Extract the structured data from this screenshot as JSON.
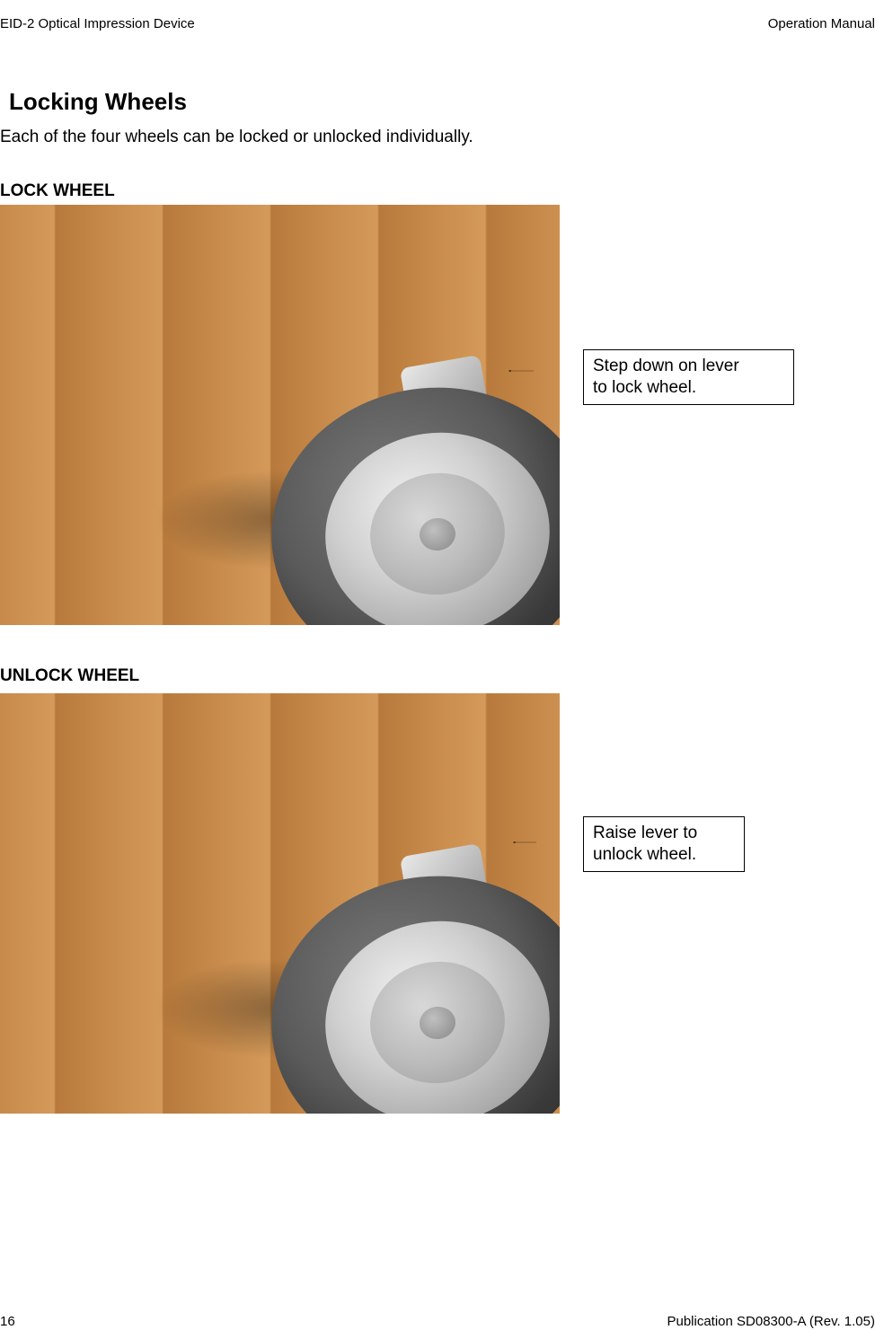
{
  "header": {
    "left": "EID-2 Optical Impression Device",
    "right": "Operation Manual"
  },
  "section": {
    "title": "Locking Wheels",
    "intro": "Each of the four wheels can be locked or unlocked individually."
  },
  "lock": {
    "heading": "LOCK WHEEL",
    "callout": "Step down on lever\nto lock wheel.",
    "figure": {
      "type": "photo-diagram",
      "floor_color": "#c78a4a",
      "floor_plank_color_alt": "#b87a3c",
      "tire_color": "#5a5a5a",
      "hub_color": "#d0d0d0",
      "lever_color": "#1a1a1a",
      "lever_state": "down",
      "arrow_color": "#000000"
    }
  },
  "unlock": {
    "heading": "UNLOCK WHEEL",
    "callout": "Raise lever to\nunlock wheel.",
    "figure": {
      "type": "photo-diagram",
      "floor_color": "#c78a4a",
      "floor_plank_color_alt": "#b87a3c",
      "tire_color": "#5a5a5a",
      "hub_color": "#d0d0d0",
      "lever_color": "#1a1a1a",
      "lever_state": "up",
      "arrow_color": "#000000"
    }
  },
  "footer": {
    "page_number": "16",
    "pub": "Publication SD08300-A  (Rev. 1.05)"
  },
  "style": {
    "callout_border": "#000000",
    "callout_bg": "#ffffff",
    "body_fontsize_pt": 14,
    "title_fontsize_pt": 20
  }
}
